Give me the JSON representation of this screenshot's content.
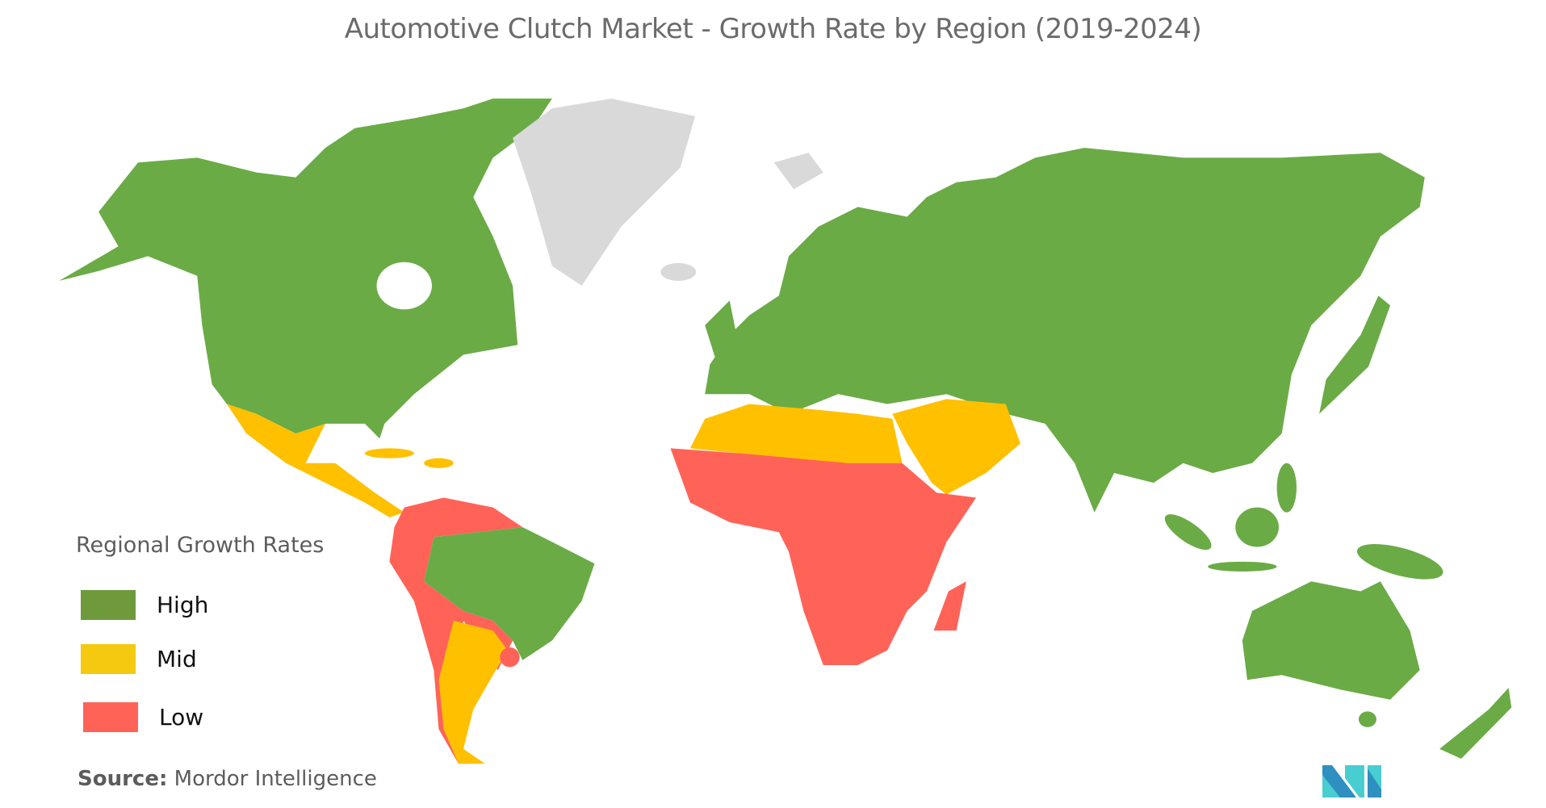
{
  "title": "Automotive Clutch Market  - Growth Rate by Region (2019-2024)",
  "legend": {
    "title": "Regional Growth Rates",
    "items": [
      {
        "key": "high",
        "label": "High",
        "color": "#6e9a3b"
      },
      {
        "key": "mid",
        "label": "Mid",
        "color": "#f5c90f"
      },
      {
        "key": "low",
        "label": "Low",
        "color": "#ff6358"
      }
    ]
  },
  "map_colors": {
    "high": "#6aab46",
    "mid": "#ffc000",
    "low": "#ff6358",
    "no_data": "#d9d9d9"
  },
  "region_categories": {
    "north-america": "high",
    "greenland": "no_data",
    "iceland": "no_data",
    "mexico-central-america": "mid",
    "caribbean": "mid",
    "northern-south-america": "low",
    "brazil": "high",
    "argentina": "mid",
    "uruguay": "low",
    "europe-asia": "high",
    "middle-east": "mid",
    "north-africa": "mid",
    "sub-saharan-africa": "low",
    "madagascar": "low",
    "southeast-asia": "high",
    "australia": "high",
    "new-zealand": "high"
  },
  "source": {
    "label": "Source:",
    "value": "Mordor Intelligence"
  },
  "logo": {
    "colors": [
      "#2e8fc0",
      "#48cdd1"
    ]
  }
}
